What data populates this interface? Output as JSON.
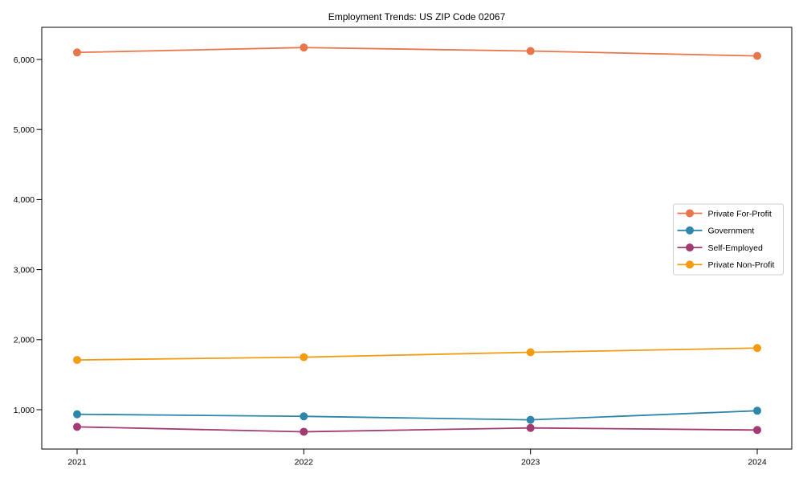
{
  "chart_data": {
    "type": "line",
    "title": "Employment Trends: US ZIP Code 02067",
    "categories": [
      "2021",
      "2022",
      "2023",
      "2024"
    ],
    "series": [
      {
        "name": "Private For-Profit",
        "color": "#E8764B",
        "values": [
          6100,
          6170,
          6120,
          6050
        ]
      },
      {
        "name": "Government",
        "color": "#2E86AB",
        "values": [
          935,
          905,
          855,
          985
        ]
      },
      {
        "name": "Self-Employed",
        "color": "#A23B72",
        "values": [
          755,
          685,
          740,
          710
        ]
      },
      {
        "name": "Private Non-Profit",
        "color": "#F39C12",
        "values": [
          1710,
          1750,
          1820,
          1880
        ]
      }
    ],
    "xlabel": "",
    "ylabel": "",
    "y_ticks": [
      1000,
      2000,
      3000,
      4000,
      5000,
      6000
    ],
    "y_tick_labels": [
      "1,000",
      "2,000",
      "3,000",
      "4,000",
      "5,000",
      "6,000"
    ],
    "ylim": [
      440,
      6460
    ],
    "grid": false,
    "marker": "circle",
    "line_width": 1.8,
    "marker_radius": 5,
    "legend_position": "center-right",
    "colors": {
      "axis": "#000000",
      "text": "#000000",
      "background": "#ffffff",
      "legend_border": "#cccccc"
    }
  }
}
